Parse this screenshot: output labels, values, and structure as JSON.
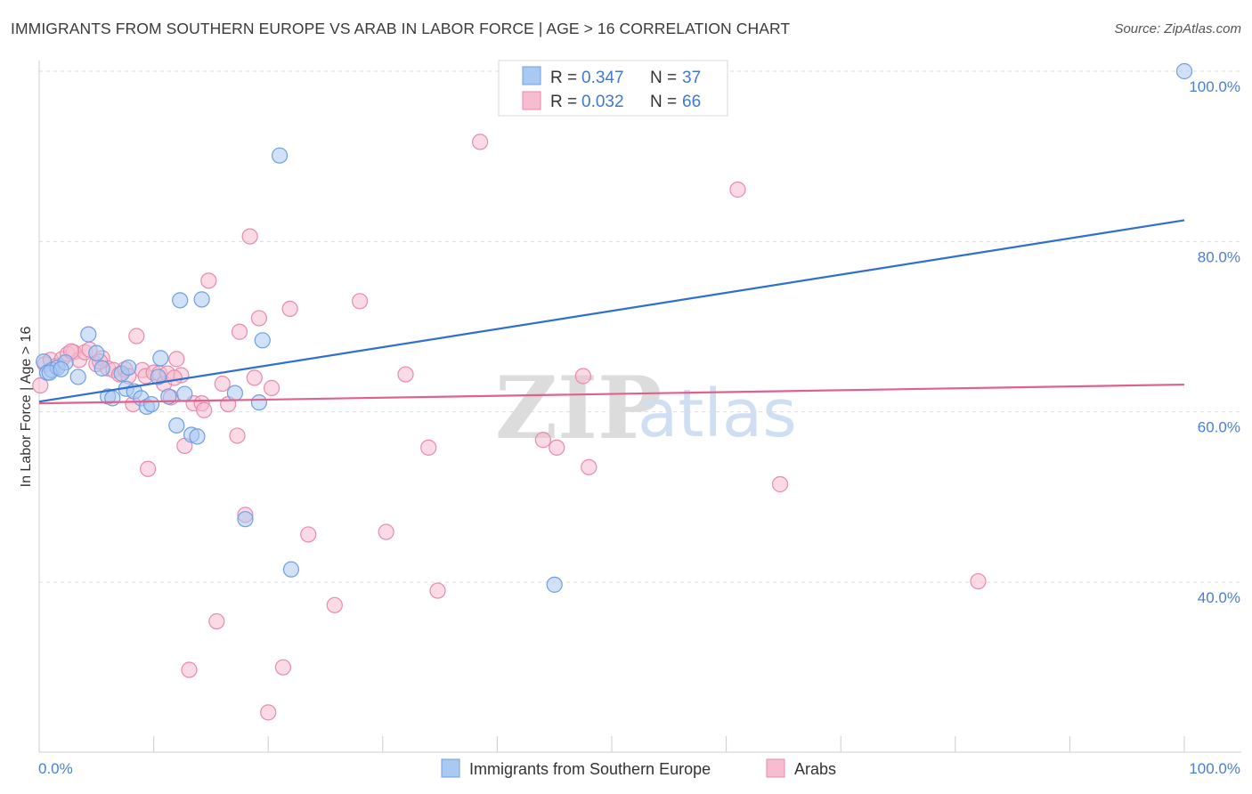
{
  "header": {
    "title": "IMMIGRANTS FROM SOUTHERN EUROPE VS ARAB IN LABOR FORCE | AGE > 16 CORRELATION CHART",
    "source": "Source: ZipAtlas.com"
  },
  "watermark": {
    "zip": "ZIP",
    "atlas": "atlas"
  },
  "colors": {
    "blue_fill": "#a9c8f2",
    "blue_stroke": "#6f9fe0",
    "blue_line": "#2e6fd0",
    "pink_fill": "#f6bccf",
    "pink_stroke": "#e98aa9",
    "pink_line": "#e0628b",
    "axis_text": "#4a7fd0",
    "grid": "#dddddd"
  },
  "chart_data": {
    "type": "scatter",
    "title": "IMMIGRANTS FROM SOUTHERN EUROPE VS ARAB IN LABOR FORCE | AGE > 16 CORRELATION CHART",
    "xlabel": "",
    "ylabel": "In Labor Force | Age > 16",
    "xlim": [
      0,
      100
    ],
    "ylim": [
      20,
      102
    ],
    "x_tick_labels": [
      "0.0%",
      "100.0%"
    ],
    "y_ticks": [
      40,
      60,
      80,
      100
    ],
    "y_tick_labels": [
      "40.0%",
      "60.0%",
      "80.0%",
      "100.0%"
    ],
    "legend": {
      "entries": [
        {
          "r_label": "R =",
          "r_value": "0.347",
          "n_label": "N =",
          "n_value": "37"
        },
        {
          "r_label": "R =",
          "r_value": "0.032",
          "n_label": "N =",
          "n_value": "66"
        }
      ]
    },
    "series": [
      {
        "name": "Immigrants from Southern Europe",
        "color": "blue",
        "trend": {
          "x": [
            0,
            100
          ],
          "y": [
            61.2,
            82.5
          ]
        },
        "points": [
          [
            0.4,
            65.9
          ],
          [
            0.7,
            64.6
          ],
          [
            1.1,
            64.9
          ],
          [
            1.6,
            65.2
          ],
          [
            2.3,
            65.8
          ],
          [
            3.4,
            64.1
          ],
          [
            4.3,
            69.1
          ],
          [
            5.0,
            66.9
          ],
          [
            5.5,
            65.1
          ],
          [
            6.0,
            61.8
          ],
          [
            6.4,
            61.6
          ],
          [
            7.2,
            64.5
          ],
          [
            7.6,
            62.7
          ],
          [
            7.8,
            65.2
          ],
          [
            8.3,
            62.4
          ],
          [
            8.9,
            61.6
          ],
          [
            9.4,
            60.6
          ],
          [
            9.8,
            60.9
          ],
          [
            10.4,
            64.1
          ],
          [
            10.6,
            66.3
          ],
          [
            11.3,
            61.8
          ],
          [
            12.0,
            58.4
          ],
          [
            12.3,
            73.1
          ],
          [
            12.7,
            62.1
          ],
          [
            13.3,
            57.3
          ],
          [
            13.8,
            57.1
          ],
          [
            14.2,
            73.2
          ],
          [
            17.1,
            62.2
          ],
          [
            18.0,
            47.4
          ],
          [
            19.2,
            61.1
          ],
          [
            19.5,
            68.4
          ],
          [
            21.0,
            90.1
          ],
          [
            22.0,
            41.5
          ],
          [
            45.0,
            39.7
          ],
          [
            100.0,
            100.0
          ],
          [
            0.9,
            64.6
          ],
          [
            1.9,
            65.0
          ]
        ]
      },
      {
        "name": "Arabs",
        "color": "pink",
        "trend": {
          "x": [
            0,
            100
          ],
          "y": [
            61.0,
            63.2
          ]
        },
        "points": [
          [
            0.1,
            63.1
          ],
          [
            0.5,
            65.6
          ],
          [
            1.0,
            66.1
          ],
          [
            1.5,
            65.4
          ],
          [
            2.0,
            66.2
          ],
          [
            2.5,
            66.8
          ],
          [
            3.0,
            67.0
          ],
          [
            3.5,
            66.1
          ],
          [
            4.0,
            67.0
          ],
          [
            4.4,
            67.3
          ],
          [
            5.0,
            65.6
          ],
          [
            5.5,
            66.3
          ],
          [
            6.0,
            65.1
          ],
          [
            6.5,
            64.9
          ],
          [
            7.0,
            64.4
          ],
          [
            7.5,
            65.0
          ],
          [
            7.8,
            64.2
          ],
          [
            8.2,
            60.9
          ],
          [
            8.5,
            68.9
          ],
          [
            9.0,
            64.9
          ],
          [
            9.3,
            64.2
          ],
          [
            9.5,
            53.3
          ],
          [
            10.0,
            64.6
          ],
          [
            10.5,
            64.5
          ],
          [
            10.9,
            63.3
          ],
          [
            11.2,
            64.5
          ],
          [
            11.5,
            61.7
          ],
          [
            12.0,
            66.2
          ],
          [
            12.4,
            64.3
          ],
          [
            12.7,
            56.0
          ],
          [
            13.1,
            29.7
          ],
          [
            13.5,
            61.0
          ],
          [
            14.2,
            61.0
          ],
          [
            14.4,
            60.2
          ],
          [
            14.8,
            75.4
          ],
          [
            15.5,
            35.4
          ],
          [
            16.0,
            63.3
          ],
          [
            16.5,
            60.9
          ],
          [
            17.3,
            57.2
          ],
          [
            17.5,
            69.4
          ],
          [
            18.0,
            47.9
          ],
          [
            18.4,
            80.6
          ],
          [
            18.8,
            64.0
          ],
          [
            19.2,
            71.0
          ],
          [
            20.0,
            24.7
          ],
          [
            20.3,
            62.8
          ],
          [
            21.3,
            30.0
          ],
          [
            21.9,
            72.1
          ],
          [
            23.5,
            45.6
          ],
          [
            25.8,
            37.3
          ],
          [
            28.0,
            73.0
          ],
          [
            30.3,
            45.9
          ],
          [
            32.0,
            64.4
          ],
          [
            34.0,
            55.8
          ],
          [
            34.8,
            39.0
          ],
          [
            38.5,
            91.7
          ],
          [
            44.0,
            56.7
          ],
          [
            45.2,
            55.8
          ],
          [
            47.5,
            64.2
          ],
          [
            48.0,
            53.5
          ],
          [
            61.0,
            86.1
          ],
          [
            64.7,
            51.5
          ],
          [
            82.0,
            40.1
          ],
          [
            2.8,
            67.1
          ],
          [
            5.3,
            65.9
          ],
          [
            11.8,
            64.0
          ]
        ]
      }
    ],
    "bottom_legend": [
      "Immigrants from Southern Europe",
      "Arabs"
    ]
  }
}
